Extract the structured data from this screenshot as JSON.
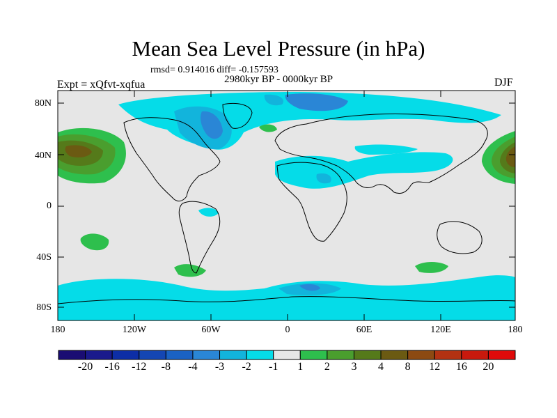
{
  "title": "Mean Sea Level Pressure (in hPa)",
  "stats": "rmsd= 0.914016 diff= -0.157593",
  "period": "2980kyr BP - 0000kyr BP",
  "experiment": "Expt = xQfvt-xqfua",
  "season": "DJF",
  "map": {
    "land_color": "#e6e6e6",
    "lat_labels": [
      "80N",
      "40N",
      "0",
      "40S",
      "80S"
    ],
    "lon_labels": [
      "180",
      "120W",
      "60W",
      "0",
      "60E",
      "120E",
      "180"
    ]
  },
  "colorbar": {
    "colors": [
      "#1a0d73",
      "#1a1a8c",
      "#0d2ea6",
      "#1446b3",
      "#1a62c4",
      "#2a86d6",
      "#12b4dc",
      "#05dce8",
      "#e6e6e6",
      "#2ebf4d",
      "#4a9e2e",
      "#557a1a",
      "#6b5a12",
      "#8c4a12",
      "#b33212",
      "#c8190d",
      "#e00a0a"
    ],
    "labels": [
      "-20",
      "-16",
      "-12",
      "-8",
      "-4",
      "-3",
      "-2",
      "-1",
      "1",
      "2",
      "3",
      "4",
      "8",
      "12",
      "16",
      "20"
    ]
  }
}
